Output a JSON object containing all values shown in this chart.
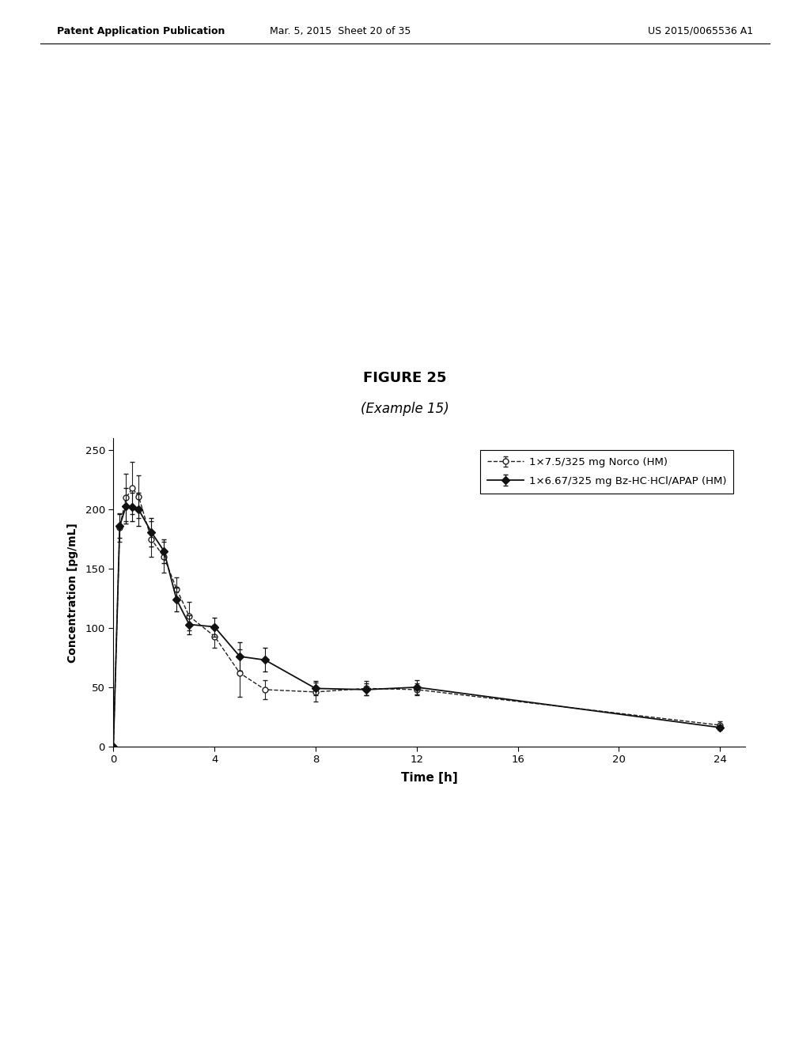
{
  "title": "FIGURE 25",
  "subtitle": "(Example 15)",
  "xlabel": "Time [h]",
  "ylabel": "Concentration [pg/mL]",
  "xlim": [
    0,
    25
  ],
  "ylim": [
    0,
    260
  ],
  "xticks": [
    0,
    4,
    8,
    12,
    16,
    20,
    24
  ],
  "yticks": [
    0,
    50,
    100,
    150,
    200,
    250
  ],
  "series1": {
    "label": "1×7.5/325 mg Norco (HM)",
    "x": [
      0,
      0.25,
      0.5,
      0.75,
      1.0,
      1.5,
      2.0,
      2.5,
      3.0,
      4.0,
      5.0,
      6.0,
      8.0,
      10.0,
      12.0,
      24.0
    ],
    "y": [
      0,
      185,
      210,
      218,
      211,
      175,
      160,
      133,
      110,
      93,
      62,
      48,
      46,
      49,
      48,
      18
    ],
    "yerr": [
      0,
      12,
      20,
      22,
      18,
      15,
      13,
      10,
      12,
      10,
      20,
      8,
      8,
      6,
      5,
      3
    ],
    "color": "#222222",
    "linestyle": "--",
    "marker": "o",
    "markerfacecolor": "white",
    "markersize": 5
  },
  "series2": {
    "label": "1×6.67/325 mg Bz-HC·HCl/APAP (HM)",
    "x": [
      0,
      0.25,
      0.5,
      0.75,
      1.0,
      1.5,
      2.0,
      2.5,
      3.0,
      4.0,
      5.0,
      6.0,
      8.0,
      10.0,
      12.0,
      24.0
    ],
    "y": [
      0,
      186,
      203,
      202,
      200,
      181,
      165,
      124,
      103,
      101,
      76,
      73,
      49,
      48,
      50,
      16
    ],
    "yerr": [
      0,
      10,
      15,
      12,
      14,
      12,
      10,
      10,
      8,
      8,
      12,
      10,
      6,
      5,
      6,
      2
    ],
    "color": "#111111",
    "linestyle": "-",
    "marker": "D",
    "markerfacecolor": "#111111",
    "markersize": 5
  },
  "background_color": "#ffffff",
  "header_left": "Patent Application Publication",
  "header_center": "Mar. 5, 2015  Sheet 20 of 35",
  "header_right": "US 2015/0065536 A1"
}
